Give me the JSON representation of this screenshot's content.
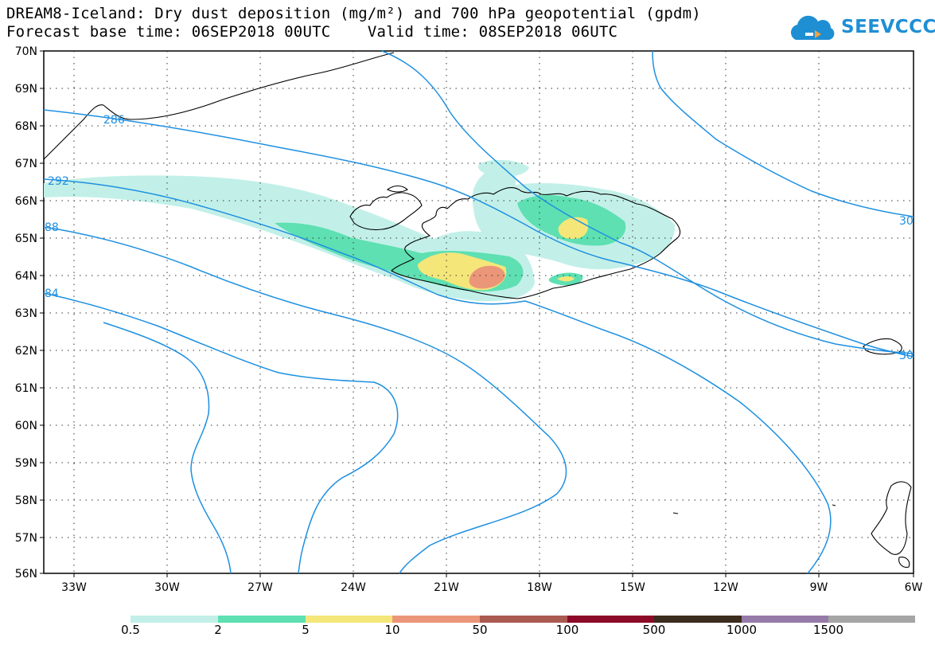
{
  "header": {
    "title_line1": "DREAM8-Iceland: Dry dust deposition (mg/m²) and 700 hPa geopotential (gpdm)",
    "title_line2": "Forecast base time: 06SEP2018 00UTC    Valid time: 08SEP2018 06UTC"
  },
  "logo": {
    "text": "SEEVCCC",
    "icon": "cloud-logo-icon",
    "color": "#1f8fd4"
  },
  "map": {
    "lat_labels": [
      "70N",
      "69N",
      "68N",
      "67N",
      "66N",
      "65N",
      "64N",
      "63N",
      "62N",
      "61N",
      "60N",
      "59N",
      "58N",
      "57N",
      "56N"
    ],
    "lon_labels": [
      "33W",
      "30W",
      "27W",
      "24W",
      "21W",
      "18W",
      "15W",
      "12W",
      "9W",
      "6W"
    ],
    "contour_color": "#1e90e0",
    "contour_labels": [
      "286",
      "292",
      "88",
      "84",
      "30",
      "30"
    ]
  },
  "colorbar": {
    "colors": [
      "#c2f0e8",
      "#5ee0b2",
      "#f5e67a",
      "#eb9678",
      "#aa5a50",
      "#8c0a28",
      "#3c2d1e",
      "#967ba8",
      "#a5a5a5"
    ],
    "labels": [
      "0.5",
      "2",
      "5",
      "10",
      "50",
      "100",
      "500",
      "1000",
      "1500"
    ]
  }
}
